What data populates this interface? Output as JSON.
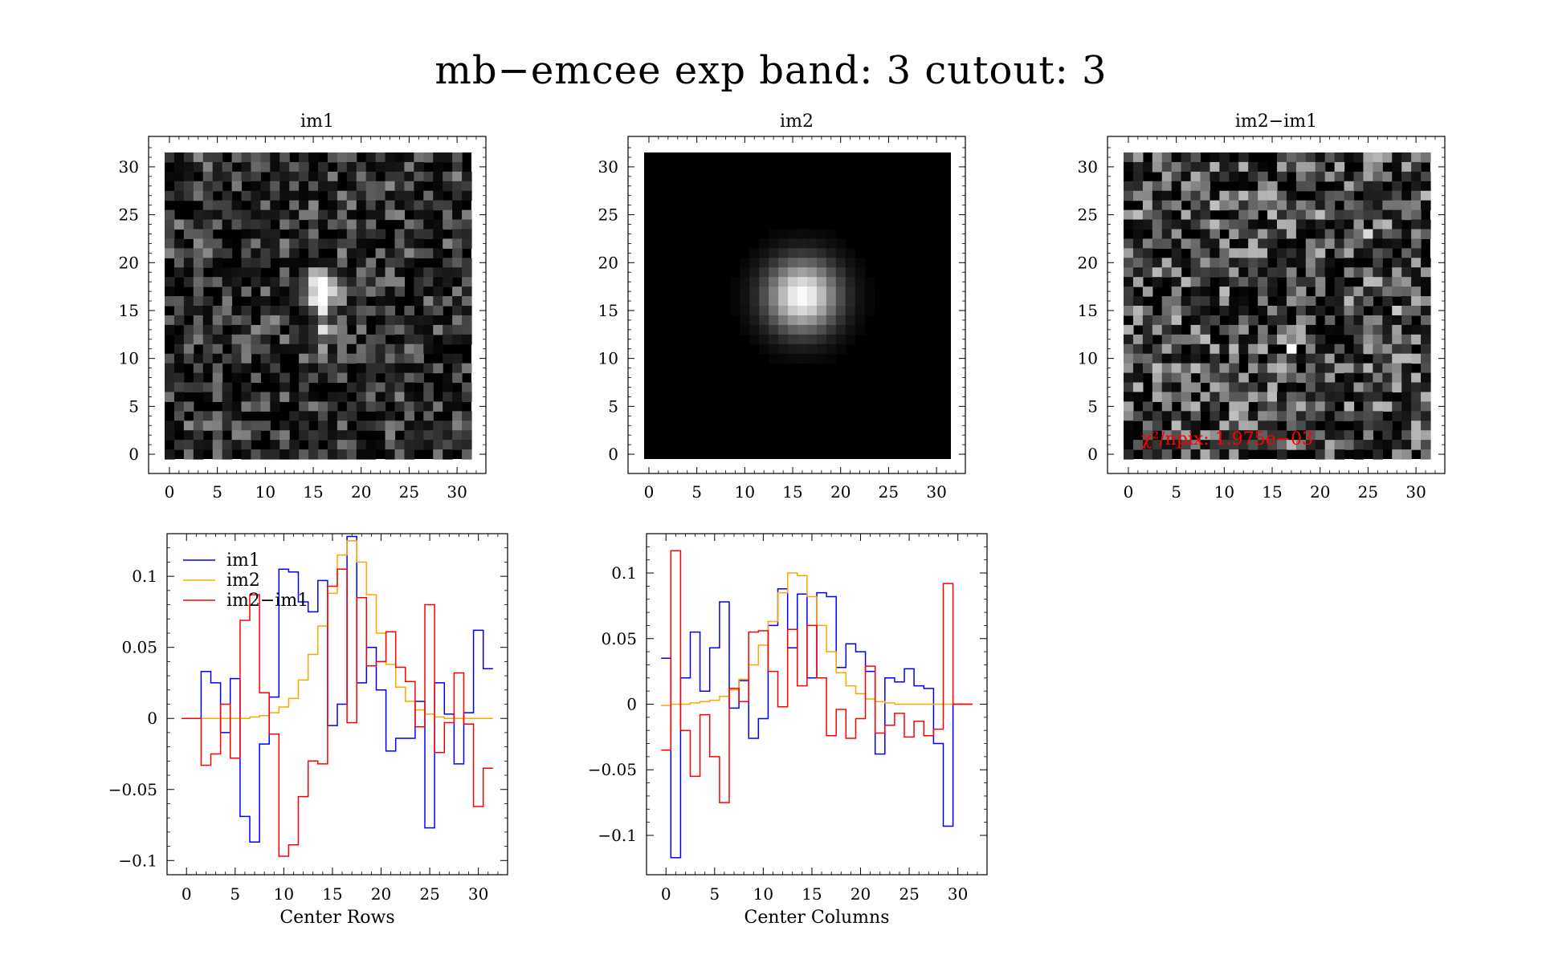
{
  "page": {
    "title": "mb−emcee exp band: 3 cutout: 3"
  },
  "chart_data": [
    {
      "type": "heatmap",
      "title": "im1",
      "x_ticks": [
        "0",
        "5",
        "10",
        "15",
        "20",
        "25",
        "30"
      ],
      "y_ticks": [
        "0",
        "5",
        "10",
        "15",
        "20",
        "25",
        "30"
      ],
      "xlim": [
        0,
        32
      ],
      "ylim": [
        0,
        32
      ],
      "grid_size": [
        32,
        32
      ],
      "colormap": "grayscale",
      "description_value": "noisy stamp with source centred near (16, 17)"
    },
    {
      "type": "heatmap",
      "title": "im2",
      "x_ticks": [
        "0",
        "5",
        "10",
        "15",
        "20",
        "25",
        "30"
      ],
      "y_ticks": [
        "0",
        "5",
        "10",
        "15",
        "20",
        "25",
        "30"
      ],
      "xlim": [
        0,
        32
      ],
      "ylim": [
        0,
        32
      ],
      "grid_size": [
        32,
        32
      ],
      "colormap": "grayscale",
      "center": [
        16,
        16.5
      ],
      "sigma": 2.6
    },
    {
      "type": "heatmap",
      "title": "im2−im1",
      "x_ticks": [
        "0",
        "5",
        "10",
        "15",
        "20",
        "25",
        "30"
      ],
      "y_ticks": [
        "0",
        "5",
        "10",
        "15",
        "20",
        "25",
        "30"
      ],
      "xlim": [
        0,
        32
      ],
      "ylim": [
        0,
        32
      ],
      "grid_size": [
        32,
        32
      ],
      "colormap": "grayscale",
      "annotation": {
        "text": "χ²/npix: 1.975e−03",
        "color": "#ff0000"
      }
    },
    {
      "type": "line",
      "step": true,
      "xlabel": "Center Rows",
      "x_ticks": [
        "0",
        "5",
        "10",
        "15",
        "20",
        "25",
        "30"
      ],
      "y_ticks": [
        "−0.1",
        "−0.05",
        "0",
        "0.05",
        "0.1"
      ],
      "xlim": [
        -2,
        33
      ],
      "ylim": [
        -0.11,
        0.13
      ],
      "legend": {
        "position": "top-left"
      },
      "x": [
        0,
        1,
        2,
        3,
        4,
        5,
        6,
        7,
        8,
        9,
        10,
        11,
        12,
        13,
        14,
        15,
        16,
        17,
        18,
        19,
        20,
        21,
        22,
        23,
        24,
        25,
        26,
        27,
        28,
        29,
        30,
        31
      ],
      "series": [
        {
          "name": "im1",
          "color": "#0000ff",
          "values": [
            0,
            0,
            0.033,
            0.025,
            -0.01,
            0.028,
            -0.069,
            -0.087,
            -0.018,
            0.015,
            0.105,
            0.103,
            0.082,
            0.075,
            0.097,
            -0.005,
            0.01,
            0.128,
            0.025,
            0.05,
            0.02,
            -0.023,
            -0.014,
            -0.014,
            0.012,
            -0.077,
            0.025,
            0.003,
            -0.032,
            0.004,
            0.062,
            0.035
          ]
        },
        {
          "name": "im2",
          "color": "#ffa500",
          "values": [
            0,
            0,
            0,
            0,
            0,
            0,
            0,
            0.001,
            0.002,
            0.004,
            0.008,
            0.014,
            0.027,
            0.045,
            0.065,
            0.088,
            0.115,
            0.125,
            0.11,
            0.087,
            0.06,
            0.038,
            0.022,
            0.012,
            0.006,
            0.003,
            0.001,
            0,
            0,
            0,
            0,
            0
          ]
        },
        {
          "name": "im2−im1",
          "color": "#ff0000",
          "values": [
            0,
            0,
            -0.033,
            -0.025,
            0.01,
            -0.028,
            0.069,
            0.087,
            0.018,
            -0.011,
            -0.097,
            -0.089,
            -0.055,
            -0.03,
            -0.032,
            0.093,
            0.105,
            -0.003,
            0.085,
            0.037,
            0.04,
            0.061,
            0.036,
            0.026,
            -0.006,
            0.08,
            -0.024,
            -0.003,
            0.032,
            -0.004,
            -0.062,
            -0.035
          ]
        }
      ]
    },
    {
      "type": "line",
      "step": true,
      "xlabel": "Center Columns",
      "x_ticks": [
        "0",
        "5",
        "10",
        "15",
        "20",
        "25",
        "30"
      ],
      "y_ticks": [
        "−0.1",
        "−0.05",
        "0",
        "0.05",
        "0.1"
      ],
      "xlim": [
        -2,
        33
      ],
      "ylim": [
        -0.13,
        0.13
      ],
      "x": [
        0,
        1,
        2,
        3,
        4,
        5,
        6,
        7,
        8,
        9,
        10,
        11,
        12,
        13,
        14,
        15,
        16,
        17,
        18,
        19,
        20,
        21,
        22,
        23,
        24,
        25,
        26,
        27,
        28,
        29,
        30,
        31
      ],
      "series": [
        {
          "name": "im1",
          "color": "#0000ff",
          "values": [
            0.035,
            -0.117,
            0.02,
            0.055,
            0.01,
            0.043,
            0.078,
            -0.003,
            0.018,
            -0.026,
            -0.011,
            0.06,
            0.088,
            0.043,
            0.084,
            0.02,
            0.085,
            0.082,
            0.028,
            0.046,
            0.04,
            0.025,
            -0.038,
            0.02,
            0.017,
            0.027,
            0.014,
            0.012,
            -0.03,
            -0.093,
            0,
            0
          ]
        },
        {
          "name": "im2",
          "color": "#ffa500",
          "values": [
            -0.001,
            0,
            0,
            0.001,
            0.002,
            0.003,
            0.006,
            0.011,
            0.019,
            0.03,
            0.045,
            0.063,
            0.085,
            0.1,
            0.098,
            0.082,
            0.06,
            0.04,
            0.024,
            0.014,
            0.008,
            0.004,
            0.002,
            0.001,
            0,
            0,
            0,
            0,
            0,
            0,
            0,
            0
          ]
        },
        {
          "name": "im2−im1",
          "color": "#ff0000",
          "values": [
            -0.035,
            0.117,
            -0.02,
            -0.055,
            -0.008,
            -0.04,
            -0.075,
            0.012,
            0.002,
            0.055,
            0.056,
            0.025,
            -0.002,
            0.057,
            0.014,
            0.06,
            0.02,
            -0.024,
            -0.004,
            -0.026,
            -0.011,
            0.029,
            -0.022,
            -0.016,
            -0.007,
            -0.025,
            -0.013,
            -0.024,
            -0.019,
            0.092,
            0,
            0
          ]
        }
      ]
    }
  ]
}
